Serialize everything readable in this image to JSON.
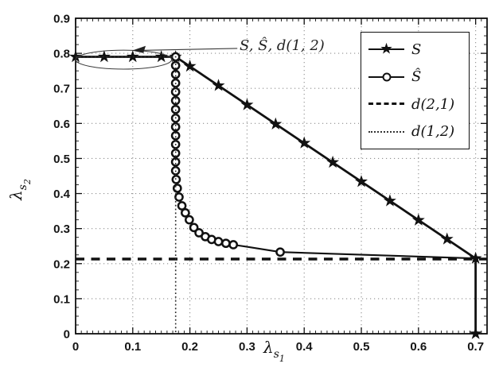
{
  "chart_data": {
    "type": "line",
    "title": "",
    "xlim": [
      0,
      0.72
    ],
    "ylim": [
      0,
      0.9
    ],
    "grid": true,
    "x_ticks": [
      0,
      0.1,
      0.2,
      0.3,
      0.4,
      0.5,
      0.6,
      0.7
    ],
    "x_tick_labels": [
      "0",
      "0.1",
      "0.2",
      "0.3",
      "0.4",
      "0.5",
      "0.6",
      "0.7"
    ],
    "y_ticks": [
      0,
      0.1,
      0.2,
      0.3,
      0.4,
      0.5,
      0.6,
      0.7,
      0.8,
      0.9
    ],
    "y_tick_labels": [
      "0",
      "0.1",
      "0.2",
      "0.3",
      "0.4",
      "0.5",
      "0.6",
      "0.7",
      "0.8",
      "0.9"
    ],
    "xlabel": {
      "base": "λ",
      "sub": "s",
      "subsub": "1"
    },
    "ylabel": {
      "base": "λ",
      "sub": "s",
      "subsub": "2"
    },
    "colors": {
      "line": "#111111",
      "grid": "#909090",
      "tick_label": "#151515",
      "annotation": "#3a3a3a",
      "background": "#ffffff"
    },
    "legend": {
      "position": "upper-right",
      "entries": [
        {
          "label": "S",
          "line": "solid",
          "marker": "star",
          "marker_glyph": "★"
        },
        {
          "label": "Ŝ",
          "line": "solid",
          "marker": "circle",
          "marker_glyph": ""
        },
        {
          "label": "d(2,1)",
          "line": "dashed",
          "marker": null,
          "marker_glyph": ""
        },
        {
          "label": "d(1,2)",
          "line": "dotted",
          "marker": null,
          "marker_glyph": ""
        }
      ]
    },
    "series": [
      {
        "name": "S",
        "legend": "S",
        "line": "solid",
        "marker": "star",
        "points": [
          [
            0,
            0.79
          ],
          [
            0.175,
            0.79
          ],
          [
            0.7,
            0.215
          ],
          [
            0.7,
            0
          ]
        ],
        "marker_points": [
          [
            0,
            0.79
          ],
          [
            0.05,
            0.79
          ],
          [
            0.1,
            0.79
          ],
          [
            0.15,
            0.79
          ],
          [
            0.175,
            0.79
          ],
          [
            0.2,
            0.763
          ],
          [
            0.25,
            0.708
          ],
          [
            0.3,
            0.653
          ],
          [
            0.35,
            0.598
          ],
          [
            0.4,
            0.544
          ],
          [
            0.45,
            0.489
          ],
          [
            0.5,
            0.434
          ],
          [
            0.55,
            0.379
          ],
          [
            0.6,
            0.324
          ],
          [
            0.65,
            0.27
          ],
          [
            0.7,
            0.215
          ],
          [
            0.7,
            0
          ]
        ]
      },
      {
        "name": "S-hat",
        "legend": "Ŝ",
        "line": "solid",
        "marker": "circle",
        "points": [
          [
            0,
            0.79
          ],
          [
            0.175,
            0.79
          ],
          [
            0.176,
            0.44
          ],
          [
            0.178,
            0.415
          ],
          [
            0.181,
            0.39
          ],
          [
            0.186,
            0.365
          ],
          [
            0.192,
            0.345
          ],
          [
            0.199,
            0.325
          ],
          [
            0.207,
            0.303
          ],
          [
            0.216,
            0.288
          ],
          [
            0.227,
            0.277
          ],
          [
            0.238,
            0.269
          ],
          [
            0.25,
            0.263
          ],
          [
            0.263,
            0.258
          ],
          [
            0.276,
            0.254
          ],
          [
            0.3,
            0.248
          ],
          [
            0.358,
            0.233
          ],
          [
            0.7,
            0.215
          ]
        ],
        "marker_points": [
          [
            0.175,
            0.79
          ],
          [
            0.175,
            0.765
          ],
          [
            0.175,
            0.74
          ],
          [
            0.175,
            0.715
          ],
          [
            0.175,
            0.69
          ],
          [
            0.175,
            0.665
          ],
          [
            0.175,
            0.64
          ],
          [
            0.175,
            0.615
          ],
          [
            0.175,
            0.59
          ],
          [
            0.175,
            0.565
          ],
          [
            0.175,
            0.54
          ],
          [
            0.175,
            0.515
          ],
          [
            0.175,
            0.49
          ],
          [
            0.175,
            0.465
          ],
          [
            0.176,
            0.44
          ],
          [
            0.178,
            0.415
          ],
          [
            0.181,
            0.39
          ],
          [
            0.186,
            0.365
          ],
          [
            0.192,
            0.345
          ],
          [
            0.199,
            0.325
          ],
          [
            0.207,
            0.303
          ],
          [
            0.216,
            0.288
          ],
          [
            0.227,
            0.277
          ],
          [
            0.238,
            0.269
          ],
          [
            0.25,
            0.263
          ],
          [
            0.263,
            0.258
          ],
          [
            0.276,
            0.254
          ],
          [
            0.358,
            0.233
          ]
        ]
      },
      {
        "name": "d(2,1)",
        "legend": "d(2,1)",
        "line": "dashed",
        "marker": null,
        "points": [
          [
            0,
            0.213
          ],
          [
            0.72,
            0.213
          ]
        ]
      },
      {
        "name": "d(1,2)",
        "legend": "d(1,2)",
        "line": "dotted",
        "marker": null,
        "points": [
          [
            0,
            0.79
          ],
          [
            0.175,
            0.79
          ],
          [
            0.175,
            0
          ]
        ]
      }
    ],
    "annotation": {
      "text": "S, Ŝ, d(1, 2)",
      "ellipse": {
        "cx": 0.084,
        "cy": 0.782,
        "rx": 0.084,
        "ry": 0.027
      },
      "arrow": {
        "from": [
          0.283,
          0.814
        ],
        "to": [
          0.099,
          0.808
        ]
      }
    }
  }
}
